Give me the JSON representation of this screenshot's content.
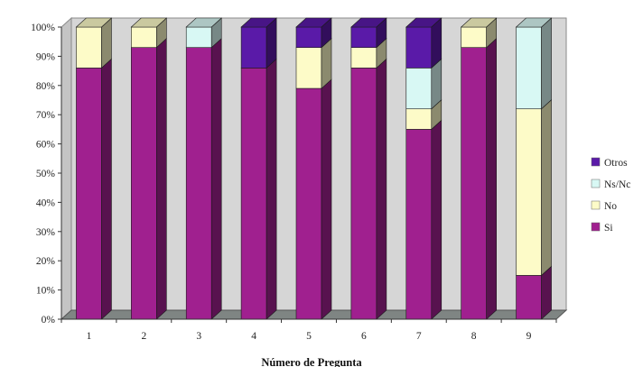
{
  "chart_data": {
    "type": "bar",
    "stacked": true,
    "percent": true,
    "style": "3d",
    "title": "",
    "xlabel": "Número de Pregunta",
    "ylabel": "",
    "ylim": [
      0,
      100
    ],
    "yticks": [
      "0%",
      "10%",
      "20%",
      "30%",
      "40%",
      "50%",
      "60%",
      "70%",
      "80%",
      "90%",
      "100%"
    ],
    "categories": [
      "1",
      "2",
      "3",
      "4",
      "5",
      "6",
      "7",
      "8",
      "9"
    ],
    "series": [
      {
        "name": "Si",
        "color": "#a0208f",
        "values": [
          86,
          93,
          93,
          86,
          79,
          86,
          65,
          93,
          15
        ]
      },
      {
        "name": "No",
        "color": "#fdfbc8",
        "values": [
          14,
          7,
          0,
          0,
          14,
          7,
          7,
          7,
          57
        ]
      },
      {
        "name": "Ns/Nc",
        "color": "#d8f8f4",
        "values": [
          0,
          0,
          7,
          0,
          0,
          0,
          14,
          0,
          28
        ]
      },
      {
        "name": "Otros",
        "color": "#5a1aa8",
        "values": [
          0,
          0,
          0,
          14,
          7,
          7,
          14,
          0,
          0
        ]
      }
    ],
    "legend_order": [
      "Otros",
      "Ns/Nc",
      "No",
      "Si"
    ],
    "legend_position": "right",
    "grid": false,
    "wall_color": "#d6d6d6",
    "floor_color": "#7f8583"
  }
}
